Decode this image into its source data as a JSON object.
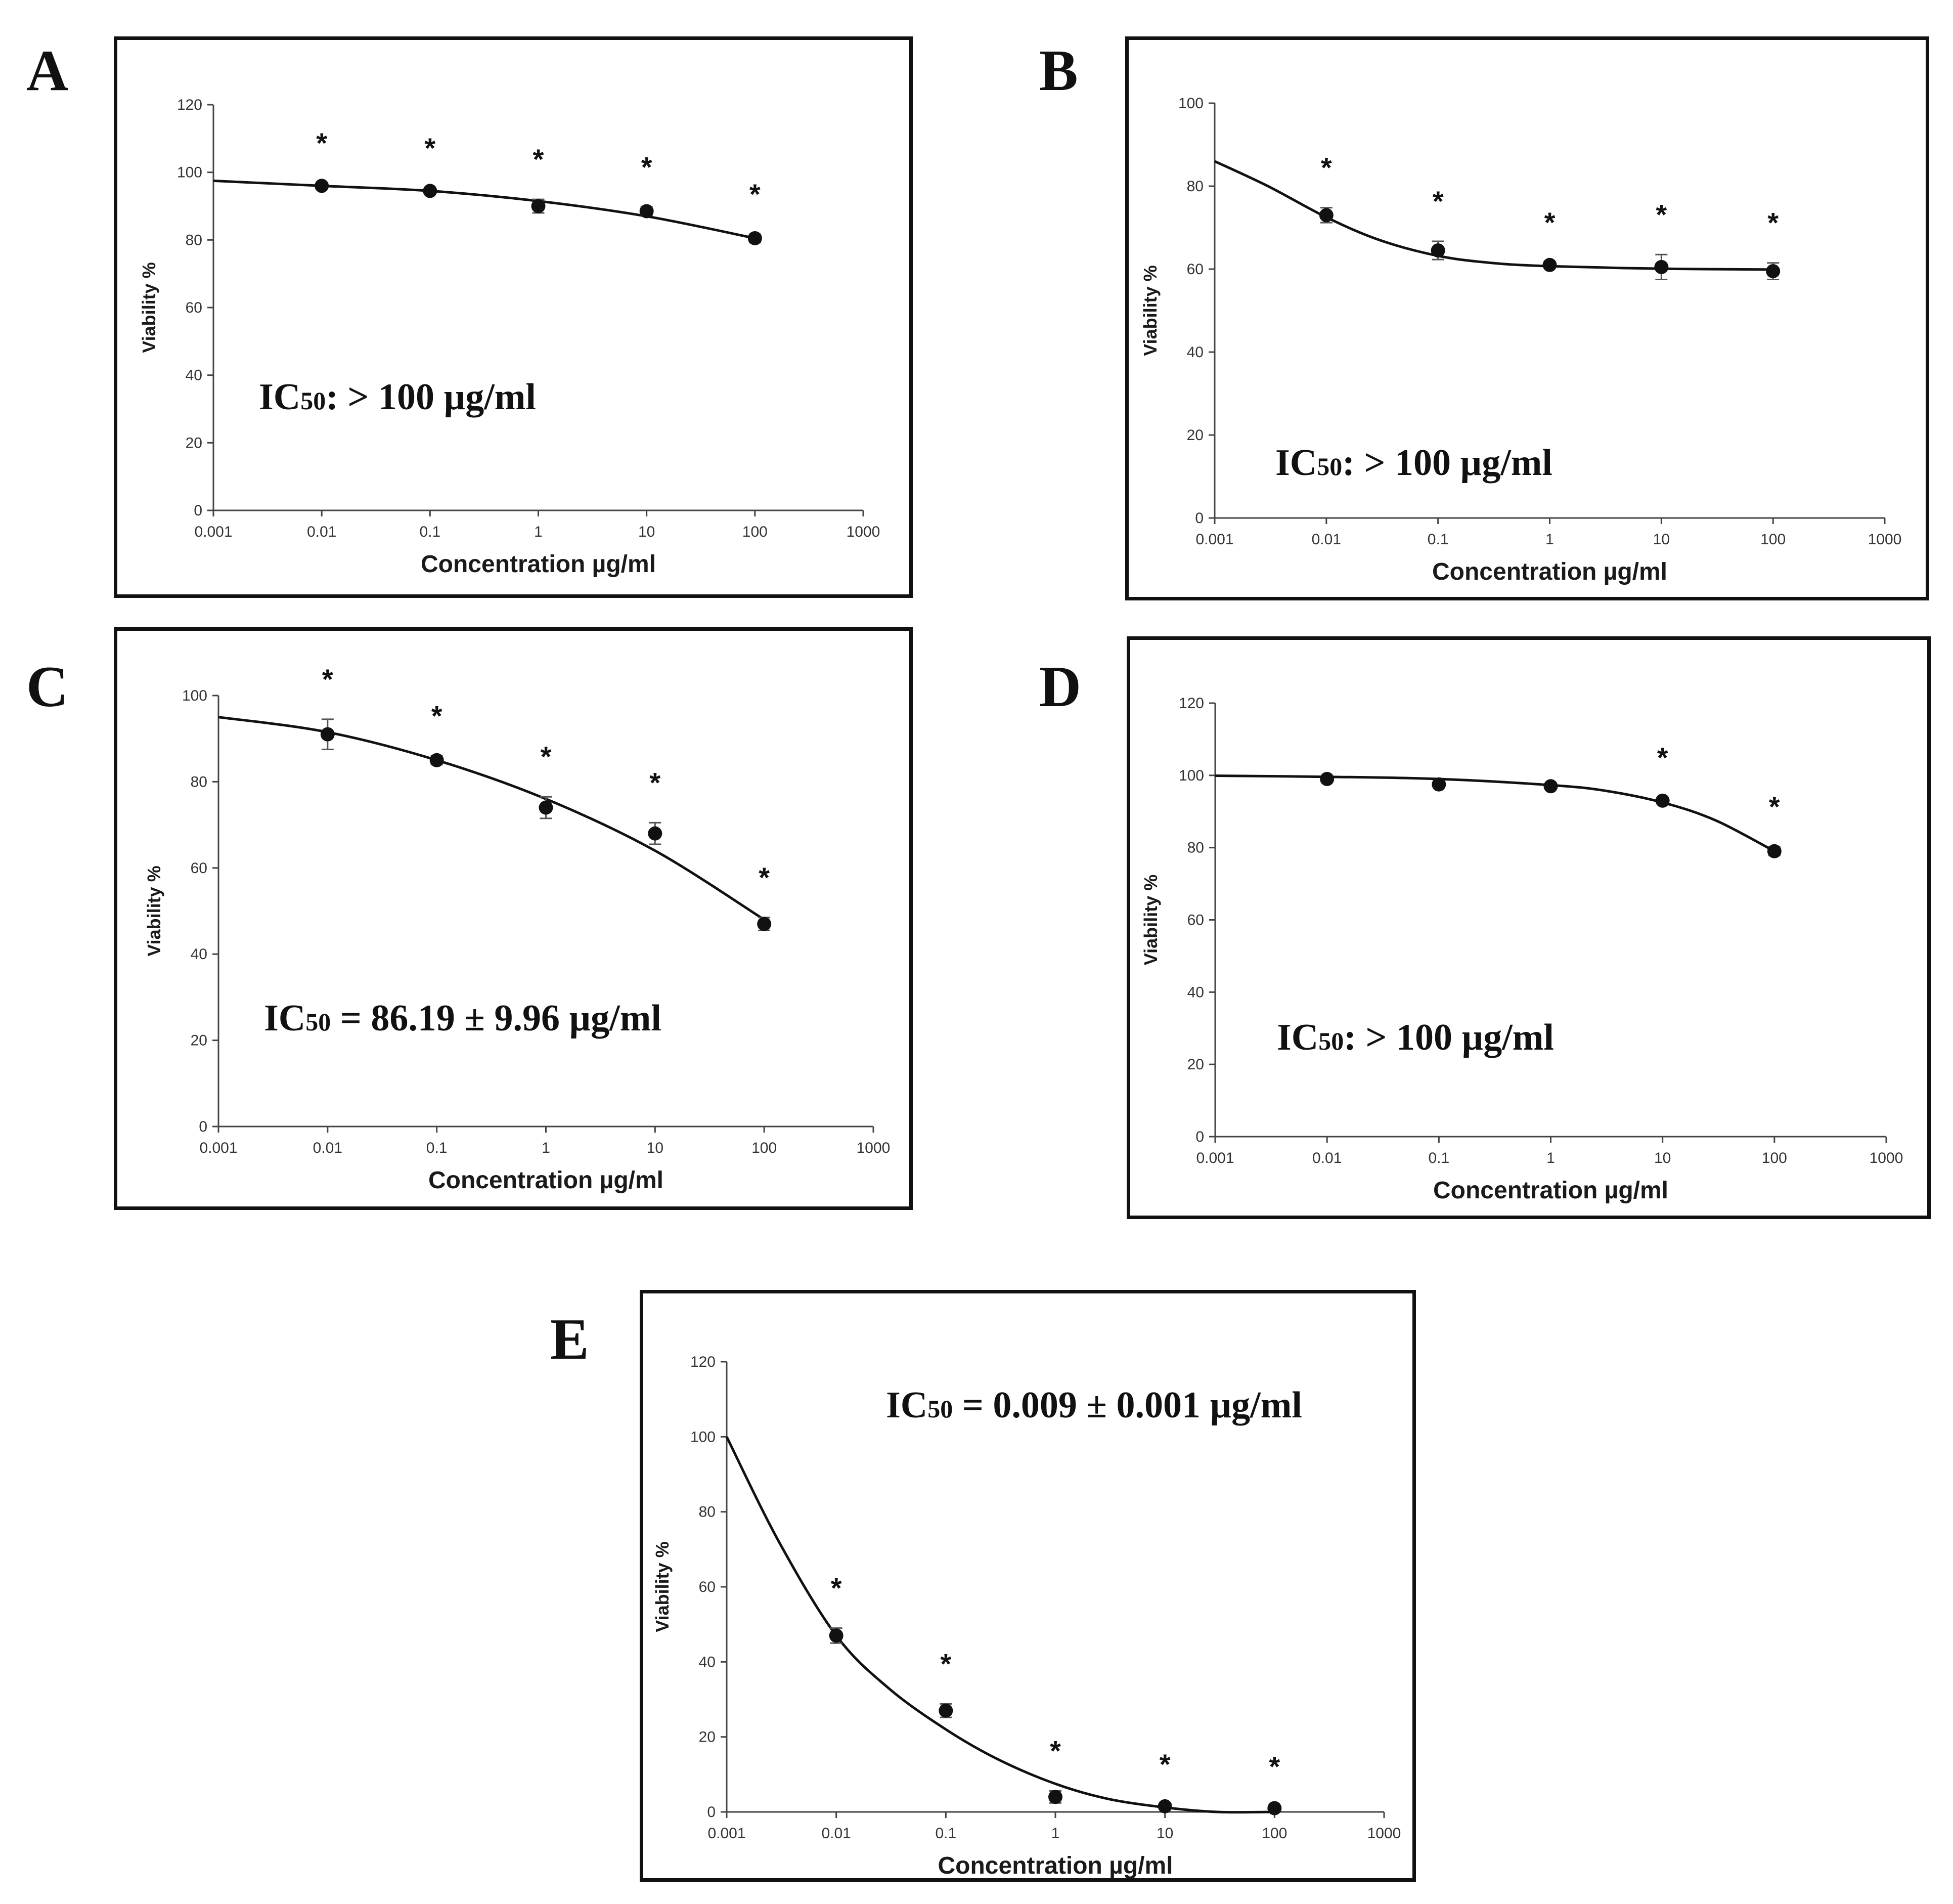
{
  "chart_data": [
    {
      "panel": "A",
      "type": "scatter",
      "xlabel": "Concentration µg/ml",
      "ylabel": "Viability %",
      "xscale": "log",
      "xlim": [
        0.001,
        1000
      ],
      "ylim": [
        0,
        120
      ],
      "ystep": 20,
      "xticks": [
        "0.001",
        "0.01",
        "0.1",
        "1",
        "10",
        "100",
        "1000"
      ],
      "yticks": [
        "0",
        "20",
        "40",
        "60",
        "80",
        "100",
        "120"
      ],
      "x": [
        0.01,
        0.1,
        1,
        10,
        100
      ],
      "values": [
        96,
        94.5,
        90,
        88.5,
        80.5
      ],
      "errors": [
        0.8,
        0.8,
        2,
        1.2,
        1.2
      ],
      "significance": [
        "*",
        "*",
        "*",
        "*",
        "*"
      ],
      "fit": {
        "x": [
          0.001,
          0.01,
          0.1,
          1,
          10,
          100
        ],
        "y": [
          97.5,
          96,
          94.5,
          91.5,
          87,
          80.5
        ]
      },
      "ic50_main": "IC",
      "ic50_sub": "50",
      "ic50_rest": ": > 100 µg/ml",
      "annotation_position": "left-middle"
    },
    {
      "panel": "B",
      "type": "scatter",
      "xlabel": "Concentration µg/ml",
      "ylabel": "Viability %",
      "xscale": "log",
      "xlim": [
        0.001,
        1000
      ],
      "ylim": [
        0,
        100
      ],
      "ystep": 20,
      "xticks": [
        "0.001",
        "0.01",
        "0.1",
        "1",
        "10",
        "100",
        "1000"
      ],
      "yticks": [
        "0",
        "20",
        "40",
        "60",
        "80",
        "100"
      ],
      "x": [
        0.01,
        0.1,
        1,
        10,
        100
      ],
      "values": [
        73,
        64.5,
        61,
        60.5,
        59.5
      ],
      "errors": [
        1.8,
        2.2,
        0.6,
        3,
        2
      ],
      "significance": [
        "*",
        "*",
        "*",
        "*",
        "*"
      ],
      "fit": {
        "x": [
          0.001,
          0.003,
          0.01,
          0.03,
          0.1,
          0.3,
          1,
          10,
          100
        ],
        "y": [
          86,
          80,
          72.5,
          67,
          63.2,
          61.5,
          60.7,
          60.1,
          59.9
        ]
      },
      "ic50_main": "IC",
      "ic50_sub": "50",
      "ic50_rest": ": > 100 µg/ml",
      "annotation_position": "center-middle"
    },
    {
      "panel": "C",
      "type": "scatter",
      "xlabel": "Concentration µg/ml",
      "ylabel": "Viability %",
      "xscale": "log",
      "xlim": [
        0.001,
        1000
      ],
      "ylim": [
        0,
        100
      ],
      "ystep": 20,
      "xticks": [
        "0.001",
        "0.01",
        "0.1",
        "1",
        "10",
        "100",
        "1000"
      ],
      "yticks": [
        "0",
        "20",
        "40",
        "60",
        "80",
        "100"
      ],
      "x": [
        0.01,
        0.1,
        1,
        10,
        100
      ],
      "values": [
        91,
        85,
        74,
        68,
        47
      ],
      "errors": [
        3.5,
        1,
        2.5,
        2.5,
        1.5
      ],
      "significance": [
        "*",
        "*",
        "*",
        "*",
        "*"
      ],
      "fit": {
        "x": [
          0.001,
          0.01,
          0.1,
          1,
          10,
          100
        ],
        "y": [
          95,
          91.5,
          85,
          76,
          64,
          48
        ]
      },
      "ic50_main": "IC",
      "ic50_sub": "50",
      "ic50_rest": " = 86.19 ± 9.96 µg/ml",
      "annotation_position": "left-lower"
    },
    {
      "panel": "D",
      "type": "scatter",
      "xlabel": "Concentration µg/ml",
      "ylabel": "Viability %",
      "xscale": "log",
      "xlim": [
        0.001,
        1000
      ],
      "ylim": [
        0,
        120
      ],
      "ystep": 20,
      "xticks": [
        "0.001",
        "0.01",
        "0.1",
        "1",
        "10",
        "100",
        "1000"
      ],
      "yticks": [
        "0",
        "20",
        "40",
        "60",
        "80",
        "100",
        "120"
      ],
      "x": [
        0.01,
        0.1,
        1,
        10,
        100
      ],
      "values": [
        99,
        97.5,
        97,
        93,
        79
      ],
      "errors": [
        0.5,
        0.6,
        0.5,
        0.8,
        1.2
      ],
      "significance": [
        "",
        "",
        "",
        "*",
        "*"
      ],
      "fit": {
        "x": [
          0.001,
          0.01,
          0.1,
          1,
          3,
          10,
          30,
          100
        ],
        "y": [
          99.9,
          99.6,
          99,
          97.3,
          95.8,
          92.5,
          87.5,
          79
        ]
      },
      "ic50_main": "IC",
      "ic50_sub": "50",
      "ic50_rest": ": > 100 µg/ml",
      "annotation_position": "center-lower"
    },
    {
      "panel": "E",
      "type": "scatter",
      "xlabel": "Concentration µg/ml",
      "ylabel": "Viability %",
      "xscale": "log",
      "xlim": [
        0.001,
        1000
      ],
      "ylim": [
        0,
        120
      ],
      "ystep": 20,
      "xticks": [
        "0.001",
        "0.01",
        "0.1",
        "1",
        "10",
        "100",
        "1000"
      ],
      "yticks": [
        "0",
        "20",
        "40",
        "60",
        "80",
        "100",
        "120"
      ],
      "x": [
        0.01,
        0.1,
        1,
        10,
        100
      ],
      "values": [
        47,
        27,
        4,
        1.5,
        1
      ],
      "errors": [
        2,
        1.8,
        1.6,
        0.5,
        0.4
      ],
      "significance": [
        "*",
        "*",
        "*",
        "*",
        "*"
      ],
      "fit": {
        "x": [
          0.001,
          0.003,
          0.01,
          0.03,
          0.1,
          0.3,
          1,
          3,
          10,
          30,
          100
        ],
        "y": [
          100,
          72,
          47,
          33,
          22,
          14,
          7.5,
          3.5,
          1.2,
          0,
          0
        ]
      },
      "ic50_main": "IC",
      "ic50_sub": "50",
      "ic50_rest": " = 0.009 ± 0.001 µg/ml",
      "annotation_position": "top-right"
    }
  ]
}
